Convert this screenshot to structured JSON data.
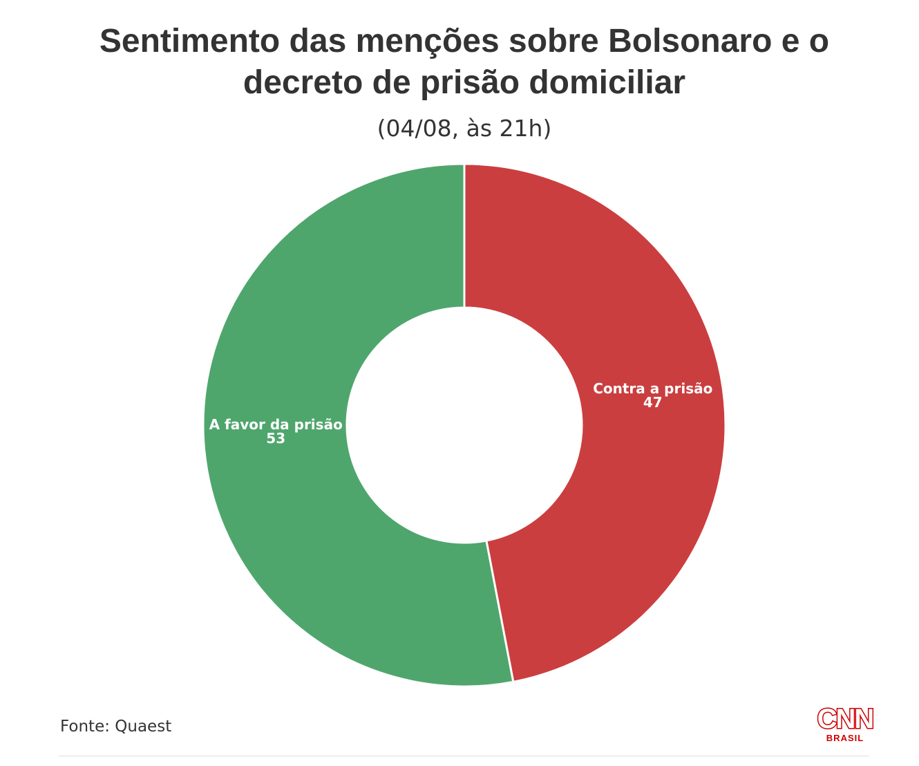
{
  "chart_data": {
    "type": "pie",
    "title": "Sentimento das menções sobre Bolsonaro e o decreto de prisão domiciliar",
    "subtitle": "(04/08, às 21h)",
    "categories": [
      "Contra a prisão",
      "A favor da prisão"
    ],
    "values": [
      47,
      53
    ],
    "colors": [
      "#cb3e3f",
      "#4fa66d"
    ],
    "donut": true
  },
  "source": "Fonte: Quaest",
  "logo": {
    "word": "CNN",
    "sub": "BRASIL",
    "color": "#cc0000"
  }
}
